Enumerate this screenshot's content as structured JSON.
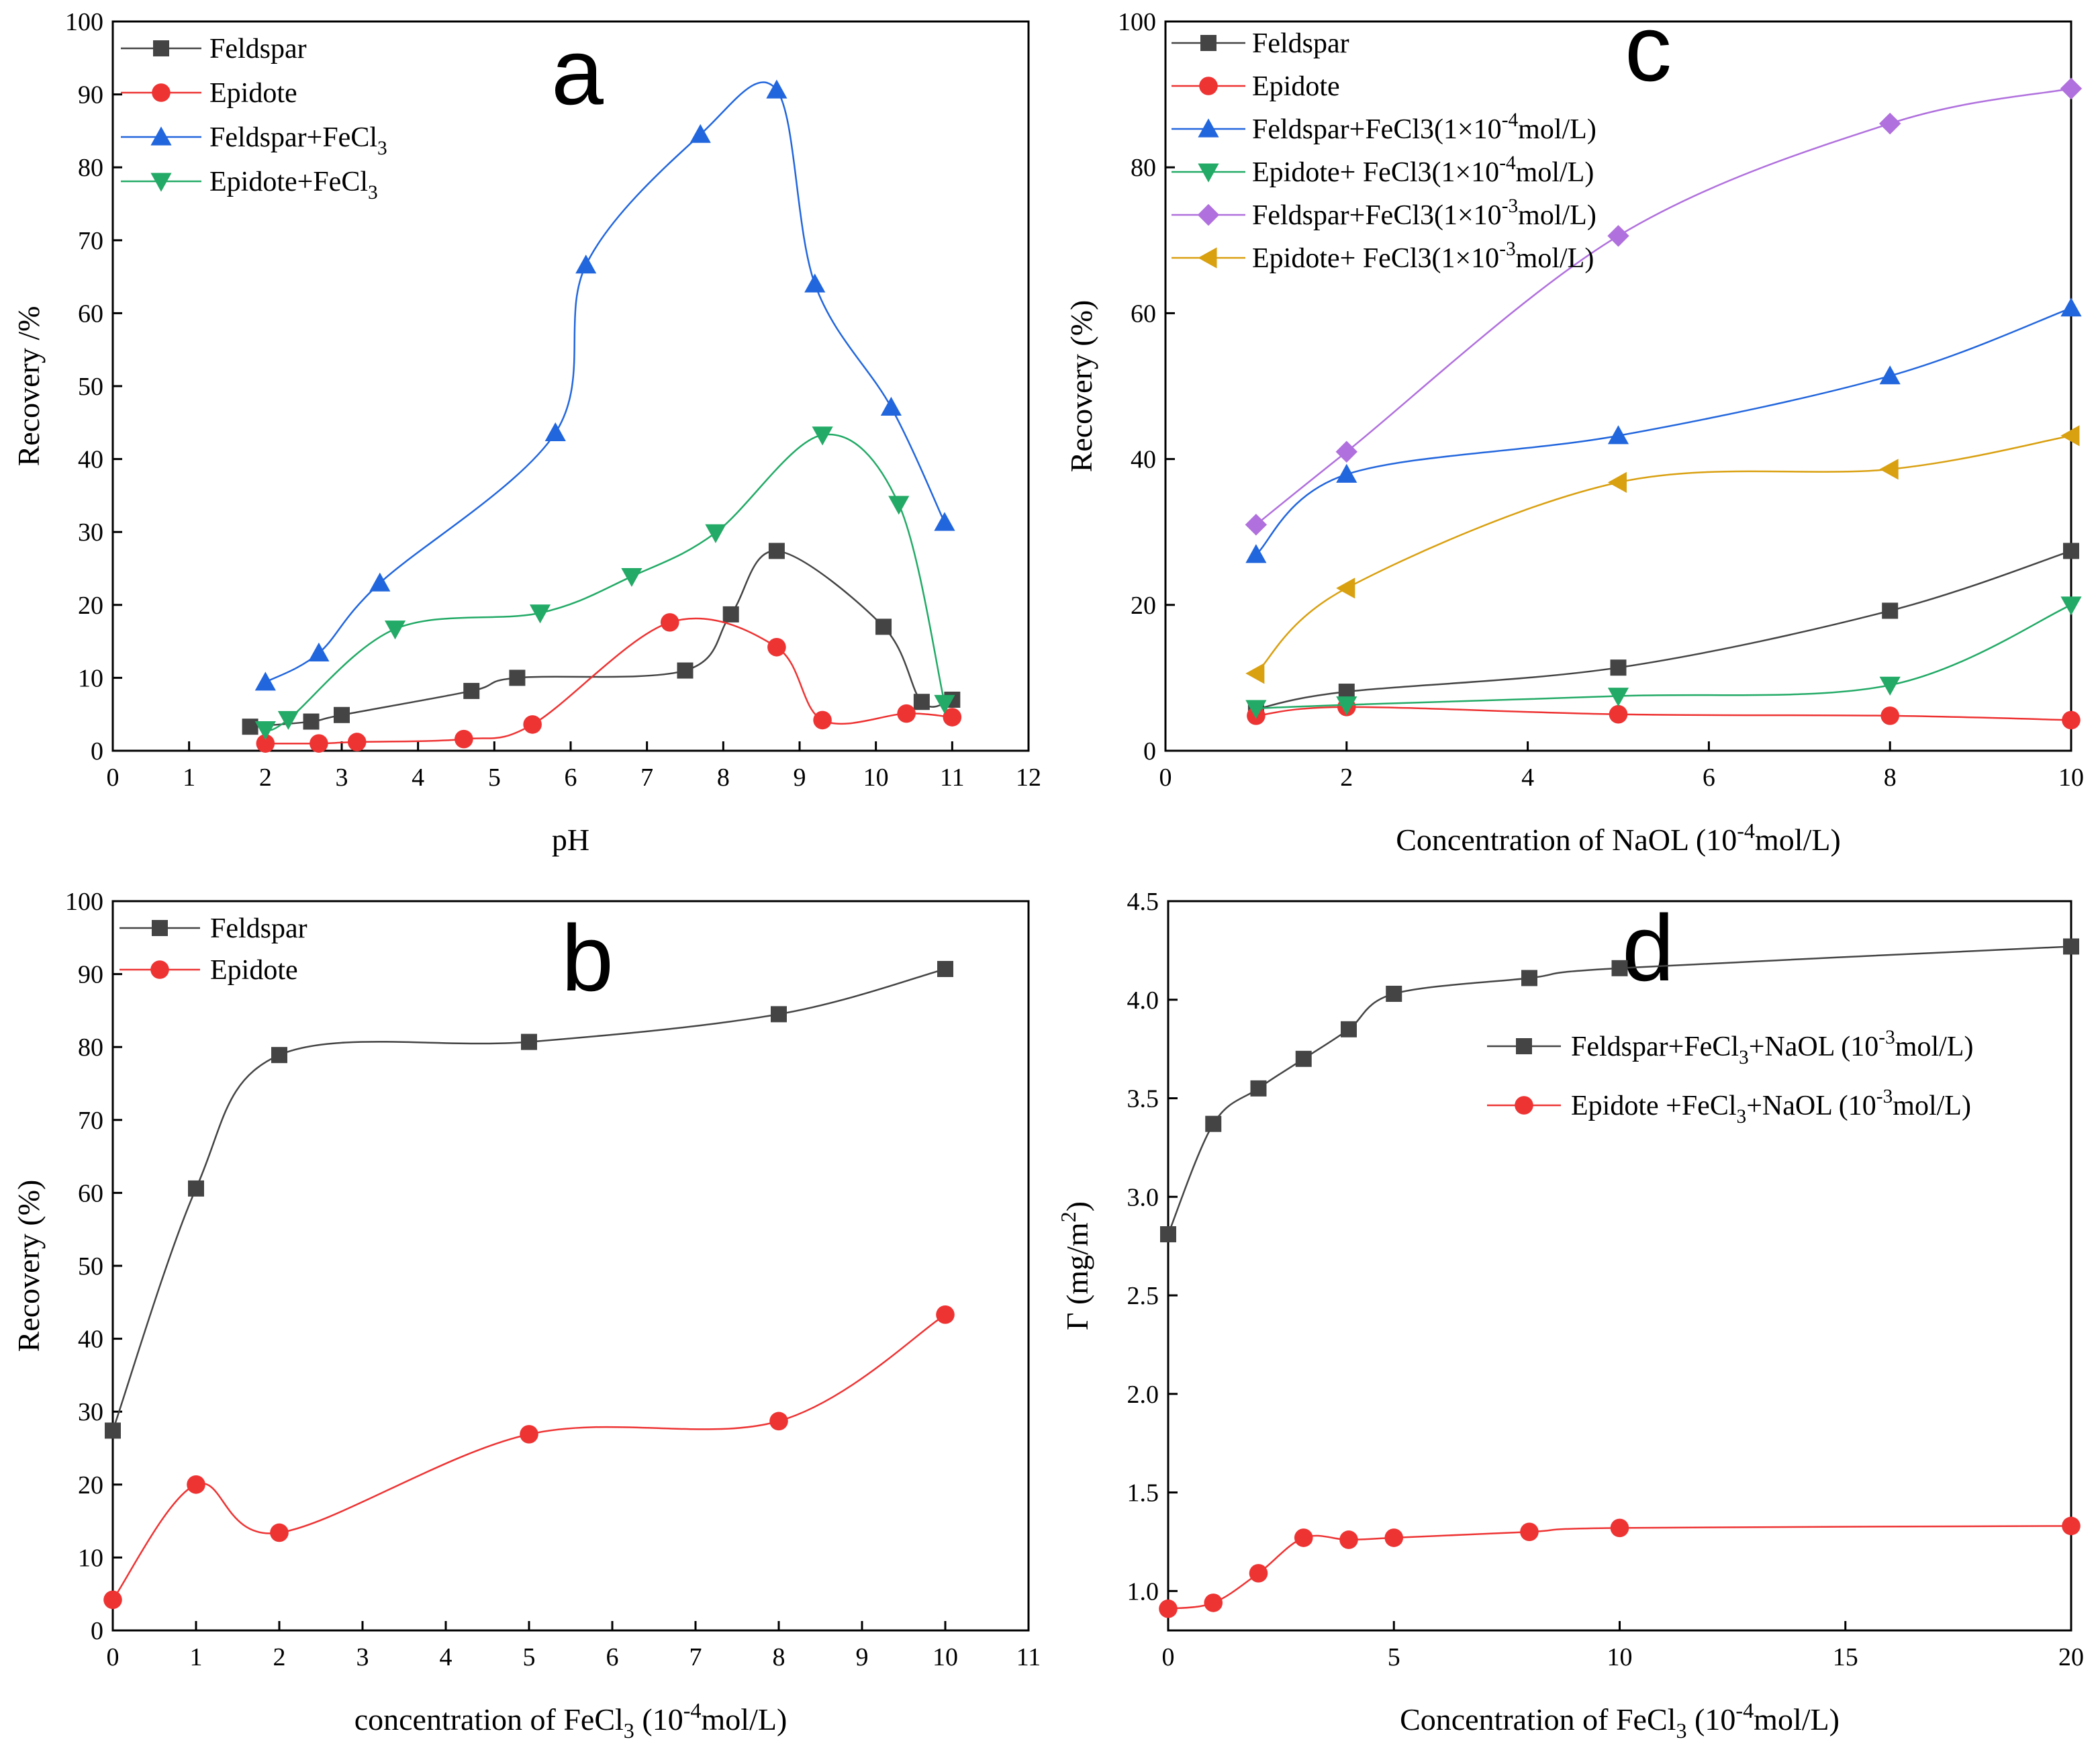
{
  "figure": {
    "panels": [
      "a",
      "c",
      "b",
      "d"
    ]
  },
  "chart_data": [
    {
      "id": "a",
      "type": "line",
      "panel_label": "a",
      "title": "",
      "xlabel": "pH",
      "ylabel": "Recovery /%",
      "xlim": [
        0,
        12
      ],
      "ylim": [
        0,
        100
      ],
      "xticks": [
        0,
        1,
        2,
        3,
        4,
        5,
        6,
        7,
        8,
        9,
        10,
        11,
        12
      ],
      "yticks": [
        0,
        10,
        20,
        30,
        40,
        50,
        60,
        70,
        80,
        90,
        100
      ],
      "legend_position": "top-left",
      "series": [
        {
          "name": "Feldspar",
          "legend": [
            "Feldspar"
          ],
          "marker": "square",
          "color": "#444444",
          "x": [
            1.8,
            2.6,
            3.0,
            4.7,
            5.3,
            7.5,
            8.1,
            8.7,
            10.1,
            10.6,
            11.0
          ],
          "y": [
            3.3,
            4.0,
            4.9,
            8.2,
            10.0,
            11.0,
            18.7,
            27.4,
            17.0,
            6.7,
            7.0
          ]
        },
        {
          "name": "Epidote",
          "legend": [
            "Epidote"
          ],
          "marker": "circle",
          "color": "#ee3333",
          "x": [
            2.0,
            2.7,
            3.2,
            4.6,
            5.5,
            7.3,
            8.7,
            9.3,
            10.4,
            11.0
          ],
          "y": [
            1.0,
            1.0,
            1.2,
            1.6,
            3.6,
            17.6,
            14.2,
            4.2,
            5.1,
            4.6
          ]
        },
        {
          "name": "Feldspar+FeCl3",
          "legend": [
            "Feldspar+FeCl",
            "3"
          ],
          "marker": "triangle-up",
          "color": "#2266dd",
          "x": [
            2.0,
            2.7,
            3.5,
            5.8,
            6.2,
            7.7,
            8.7,
            9.2,
            10.2,
            10.9
          ],
          "y": [
            9.4,
            13.4,
            23.0,
            43.6,
            66.6,
            84.5,
            90.6,
            64.0,
            47.1,
            31.3
          ]
        },
        {
          "name": "Epidote+FeCl3",
          "legend": [
            "Epidote+FeCl",
            "3"
          ],
          "marker": "triangle-down",
          "color": "#22aa66",
          "x": [
            2.0,
            2.3,
            3.7,
            5.6,
            6.8,
            7.9,
            9.3,
            10.3,
            10.9
          ],
          "y": [
            2.9,
            4.3,
            16.7,
            18.9,
            23.9,
            29.9,
            43.3,
            33.8,
            6.5
          ]
        }
      ]
    },
    {
      "id": "c",
      "type": "line",
      "panel_label": "c",
      "title": "",
      "xlabel": "Concentration of  NaOL (10-4mol/L)",
      "xlabel_parts": [
        "Concentration of  NaOL (10",
        "-4",
        "mol/L)"
      ],
      "ylabel": "Recovery  (%)",
      "xlim": [
        0,
        10
      ],
      "ylim": [
        0,
        100
      ],
      "xticks": [
        0,
        2,
        4,
        6,
        8,
        10
      ],
      "yticks": [
        0,
        20,
        40,
        60,
        80,
        100
      ],
      "legend_position": "top-left",
      "series": [
        {
          "name": "Feldspar",
          "legend": [
            "Feldspar"
          ],
          "marker": "square",
          "color": "#444444",
          "x": [
            1,
            2,
            5,
            8,
            10
          ],
          "y": [
            5.7,
            8.1,
            11.4,
            19.2,
            27.4
          ]
        },
        {
          "name": "Epidote",
          "legend": [
            "Epidote"
          ],
          "marker": "circle",
          "color": "#ee3333",
          "x": [
            1,
            2,
            5,
            8,
            10
          ],
          "y": [
            4.8,
            6.0,
            5.0,
            4.8,
            4.2
          ]
        },
        {
          "name": "Feldspar+FeCl3(1×10-4mol/L)",
          "legend": [
            "Feldspar+FeCl3(1×10",
            "-4",
            "mol/L)"
          ],
          "marker": "triangle-up",
          "color": "#2266dd",
          "x": [
            1,
            2,
            5,
            8,
            10
          ],
          "y": [
            26.9,
            37.9,
            43.2,
            51.4,
            60.7
          ]
        },
        {
          "name": "Epidote+ FeCl3(1×10-4mol/L)",
          "legend": [
            "Epidote+ FeCl3(1×10",
            "-4",
            "mol/L)"
          ],
          "marker": "triangle-down",
          "color": "#22aa66",
          "x": [
            1,
            2,
            5,
            8,
            10
          ],
          "y": [
            5.8,
            6.3,
            7.5,
            9.0,
            20.0
          ]
        },
        {
          "name": "Feldspar+FeCl3(1×10-3mol/L)",
          "legend": [
            "Feldspar+FeCl3(1×10",
            "-3",
            "mol/L)"
          ],
          "marker": "diamond",
          "color": "#b070dd",
          "x": [
            1,
            2,
            5,
            8,
            10
          ],
          "y": [
            31.0,
            41.0,
            70.6,
            86.0,
            90.8
          ]
        },
        {
          "name": "Epidote+ FeCl3(1×10-3mol/L)",
          "legend": [
            "Epidote+ FeCl3(1×10",
            "-3",
            "mol/L)"
          ],
          "marker": "triangle-left",
          "color": "#d9a010",
          "x": [
            1,
            2,
            5,
            8,
            10
          ],
          "y": [
            10.6,
            22.3,
            36.8,
            38.6,
            43.2
          ]
        }
      ]
    },
    {
      "id": "b",
      "type": "line",
      "panel_label": "b",
      "title": "",
      "xlabel": "concentration of  FeCl3 (10-4mol/L)",
      "xlabel_parts": [
        "concentration of  FeCl",
        "3",
        " (10",
        "-4",
        "mol/L)"
      ],
      "ylabel": "Recovery  (%)",
      "xlim": [
        0,
        11
      ],
      "ylim": [
        0,
        100
      ],
      "xticks": [
        0,
        1,
        2,
        3,
        4,
        5,
        6,
        7,
        8,
        9,
        10,
        11
      ],
      "yticks": [
        0,
        10,
        20,
        30,
        40,
        50,
        60,
        70,
        80,
        90,
        100
      ],
      "legend_position": "top-left",
      "series": [
        {
          "name": "Feldspar",
          "legend": [
            "Feldspar"
          ],
          "marker": "square",
          "color": "#444444",
          "x": [
            0,
            1,
            2,
            5,
            8,
            10
          ],
          "y": [
            27.4,
            60.6,
            78.9,
            80.7,
            84.5,
            90.7
          ]
        },
        {
          "name": "Epidote",
          "legend": [
            "Epidote"
          ],
          "marker": "circle",
          "color": "#ee3333",
          "x": [
            0,
            1,
            2,
            5,
            8,
            10
          ],
          "y": [
            4.2,
            20.0,
            13.4,
            26.9,
            28.7,
            43.3
          ]
        }
      ]
    },
    {
      "id": "d",
      "type": "line",
      "panel_label": "d",
      "title": "",
      "xlabel": "Concentration of  FeCl3 (10-4mol/L)",
      "xlabel_parts": [
        "Concentration of  FeCl",
        "3",
        " (10",
        "-4",
        "mol/L)"
      ],
      "ylabel": "Γ  (mg/m2)",
      "ylabel_parts": [
        "Γ  (mg/m",
        "2",
        ")"
      ],
      "xlim": [
        0,
        20
      ],
      "ylim": [
        0.8,
        4.5
      ],
      "xticks": [
        0,
        5,
        10,
        15,
        20
      ],
      "yticks": [
        "1.0",
        "1.5",
        "2.0",
        "2.5",
        "3.0",
        "3.5",
        "4.0",
        "4.5"
      ],
      "legend_position": "right",
      "series": [
        {
          "name": "Feldspar+FeCl3+NaOL (10-3mol/L)",
          "legend": [
            "Feldspar+FeCl",
            "3",
            "+NaOL (10",
            "-3",
            "mol/L)"
          ],
          "marker": "square",
          "color": "#444444",
          "x": [
            0,
            1,
            2,
            3,
            4,
            5,
            8,
            10,
            20
          ],
          "y": [
            2.81,
            3.37,
            3.55,
            3.7,
            3.85,
            4.03,
            4.11,
            4.16,
            4.27
          ]
        },
        {
          "name": "Epidote +FeCl3+NaOL (10-3mol/L)",
          "legend": [
            "Epidote +FeCl",
            "3",
            "+NaOL (10",
            "-3",
            "mol/L)"
          ],
          "marker": "circle",
          "color": "#ee3333",
          "x": [
            0,
            1,
            2,
            3,
            4,
            5,
            8,
            10,
            20
          ],
          "y": [
            0.91,
            0.94,
            1.09,
            1.27,
            1.26,
            1.27,
            1.3,
            1.32,
            1.33
          ]
        }
      ]
    }
  ]
}
